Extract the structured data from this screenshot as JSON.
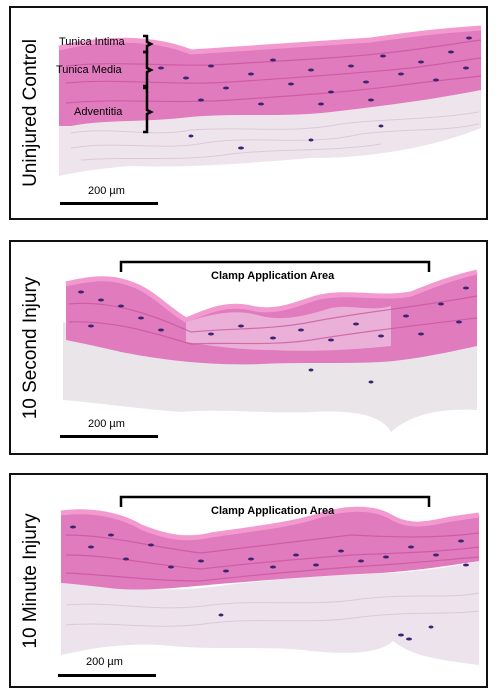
{
  "panels": [
    {
      "label": "Uninjured Control",
      "scale_bar": "200 µm",
      "layers": [
        "Tunica Intima",
        "Tunica Media",
        "Adventitia"
      ]
    },
    {
      "label": "10 Second Injury",
      "scale_bar": "200 µm",
      "clamp_label": "Clamp Application Area"
    },
    {
      "label": "10 Minute Injury",
      "scale_bar": "200 µm",
      "clamp_label": "Clamp Application Area"
    }
  ],
  "colors": {
    "media": "#e27cc0",
    "media_dark": "#d45aa6",
    "intima": "#ee86c8",
    "adventitia": "#ede3ec",
    "nuclei": "#3a2470",
    "background": "#ffffff"
  }
}
